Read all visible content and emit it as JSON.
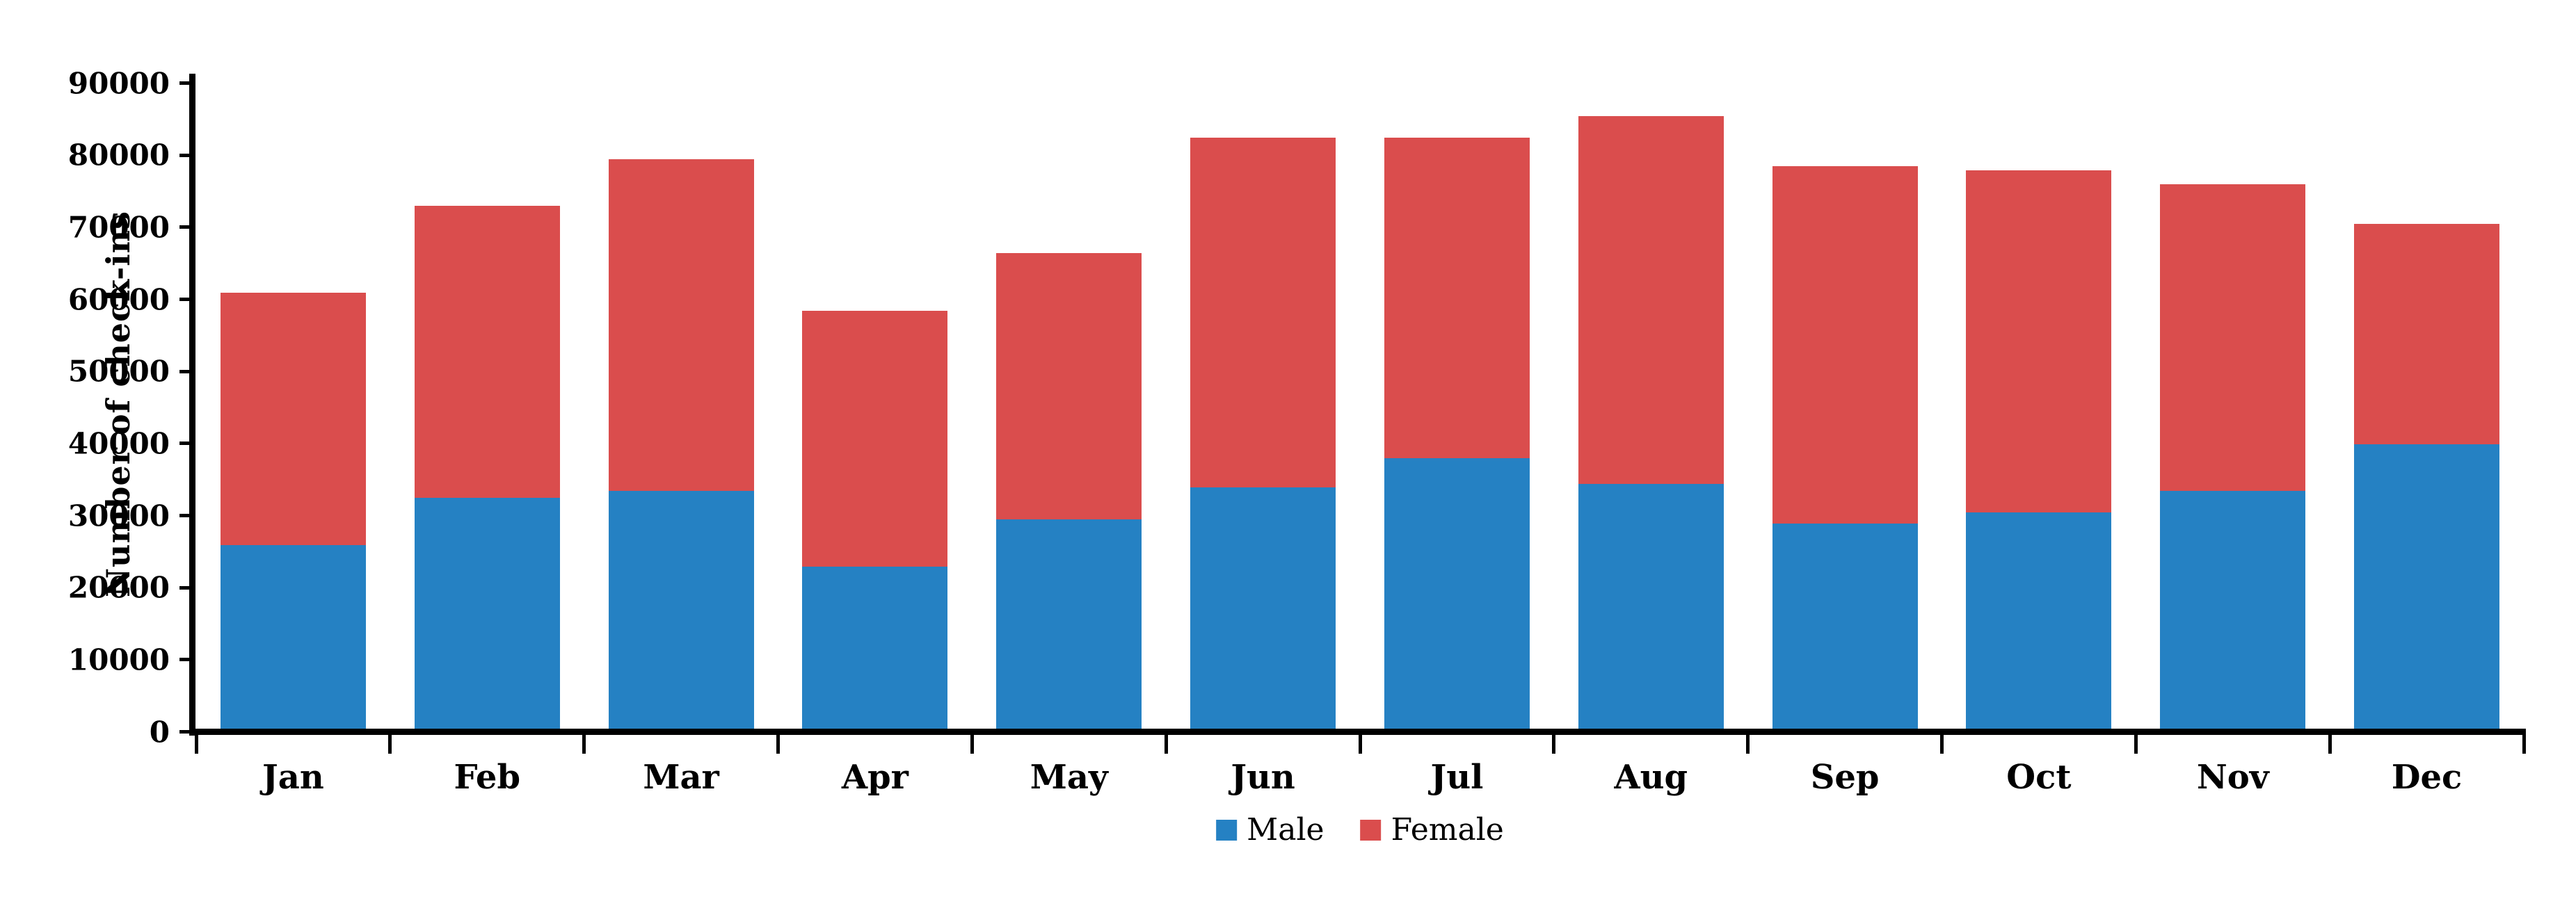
{
  "chart_data": {
    "type": "bar",
    "stacked": true,
    "title": "",
    "xlabel": "",
    "ylabel": "Number of check-ins",
    "categories": [
      "Jan",
      "Feb",
      "Mar",
      "Apr",
      "May",
      "Jun",
      "Jul",
      "Aug",
      "Sep",
      "Oct",
      "Nov",
      "Dec"
    ],
    "series": [
      {
        "name": "Male",
        "color": "#2581c3",
        "values": [
          25500,
          32000,
          33000,
          22500,
          29000,
          33500,
          37500,
          34000,
          28500,
          30000,
          33000,
          39500
        ]
      },
      {
        "name": "Female",
        "color": "#da4d4d",
        "values": [
          35000,
          40500,
          46000,
          35500,
          37000,
          48500,
          44500,
          51000,
          49500,
          47500,
          42500,
          30500
        ]
      }
    ],
    "totals": [
      60500,
      72500,
      79000,
      58000,
      66000,
      82000,
      82000,
      85000,
      78000,
      77500,
      75500,
      70000
    ],
    "ylim": [
      0,
      90000
    ],
    "yticks": [
      0,
      10000,
      20000,
      30000,
      40000,
      50000,
      60000,
      70000,
      80000,
      90000
    ],
    "grid": false,
    "legend_position": "bottom-center",
    "axis_color": "#000000",
    "background_color": "#ffffff"
  }
}
